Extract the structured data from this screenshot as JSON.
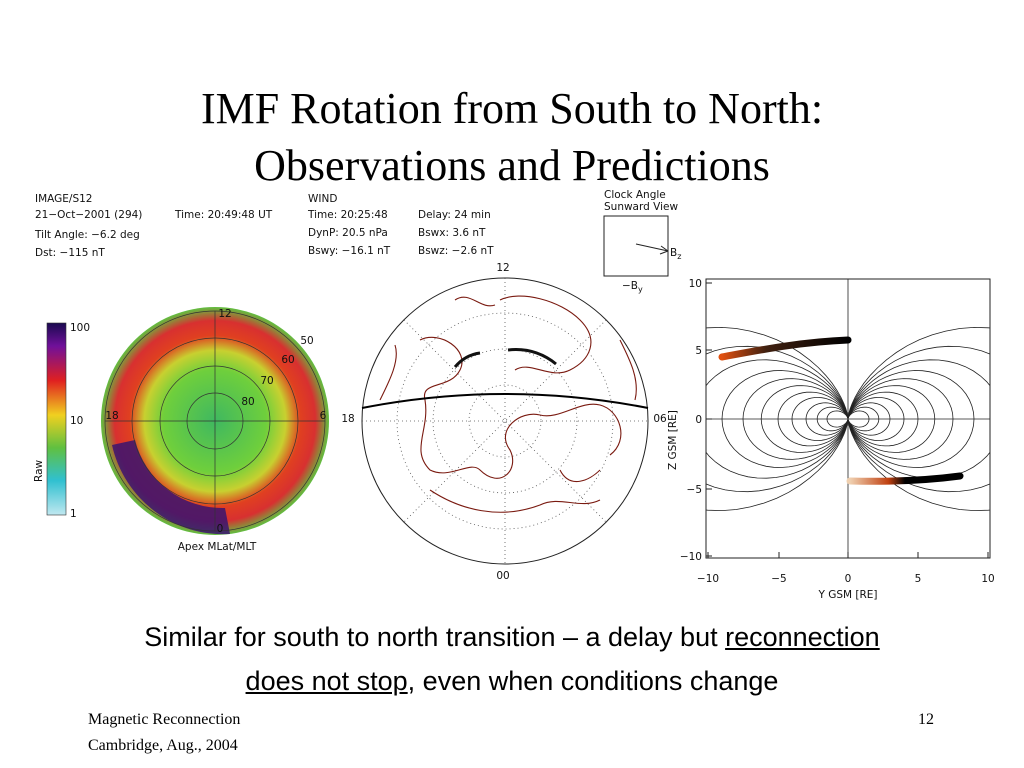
{
  "slide": {
    "title_line1": "IMF Rotation from South to North:",
    "title_line2": "Observations and Predictions",
    "caption": {
      "text_before": "Similar for south to north transition – a delay but ",
      "link1": "reconnection",
      "link2": "does not stop",
      "text_after": ", even when conditions change"
    },
    "footer": {
      "left_line1": "Magnetic Reconnection",
      "left_line2": "Cambridge, Aug., 2004",
      "page_number": "12"
    }
  },
  "figure_image": {
    "header": [
      "IMAGE/S12",
      "21−Oct−2001 (294)",
      "Time: 20:49:48 UT",
      "Tilt Angle: −6.2 deg",
      "Dst: −115 nT"
    ],
    "colorbar_label": "Raw",
    "colorbar_ticks": [
      "100",
      "10",
      "1"
    ],
    "mlt_labels": [
      "12",
      "18",
      "6",
      "0"
    ],
    "lat_labels": [
      "50",
      "60",
      "70",
      "80"
    ],
    "axis_label": "Apex MLat/MLT"
  },
  "figure_wind": {
    "lines": [
      "WIND",
      "Time: 20:25:48",
      "Delay: 24 min",
      "DynP: 20.5 nPa",
      "Bswx: 3.6 nT",
      "Bswy: −16.1 nT",
      "Bswz: −2.6 nT"
    ],
    "mlt_labels": [
      "12",
      "18",
      "06",
      "00"
    ]
  },
  "clock_angle": {
    "title_line1": "Clock Angle",
    "title_line2": "Sunward View",
    "bz_label": "B",
    "bz_sub": "z",
    "by_label": "−B",
    "by_sub": "y"
  },
  "field_plot": {
    "y_label": "Z GSM [RE]",
    "x_label": "Y GSM [RE]",
    "yticks": [
      "10",
      "5",
      "0",
      "−5",
      "−10"
    ],
    "xticks": [
      "−10",
      "−5",
      "0",
      "5",
      "10"
    ]
  }
}
